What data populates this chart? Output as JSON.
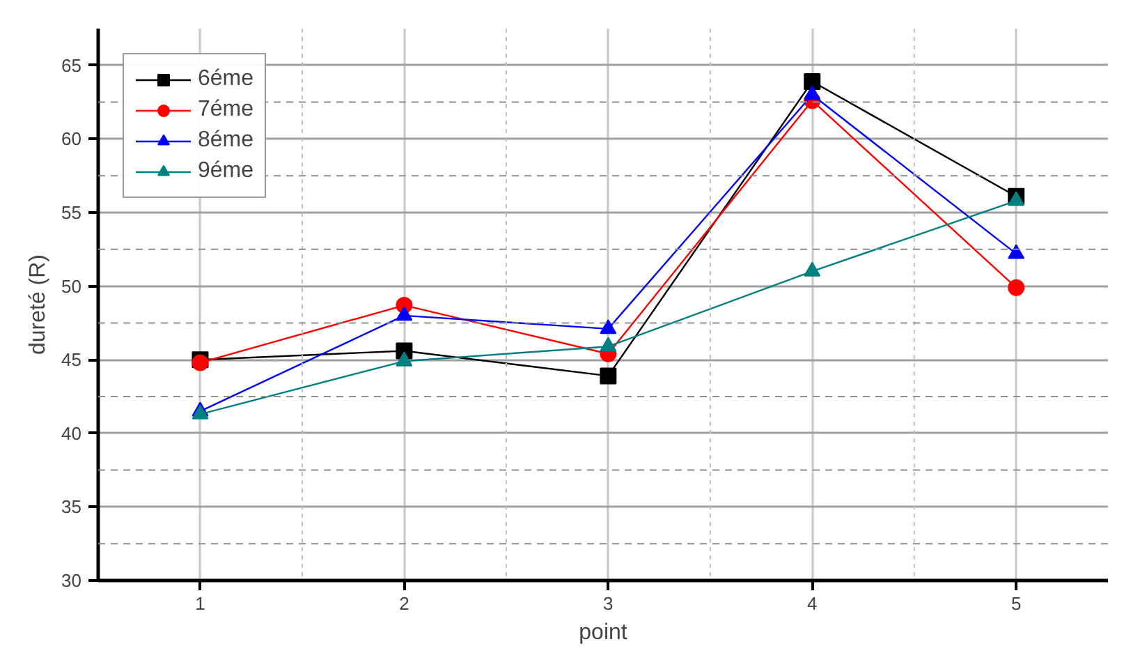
{
  "chart_data": {
    "type": "line",
    "xlabel": "point",
    "ylabel": "dureté (R)",
    "x": [
      1,
      2,
      3,
      4,
      5
    ],
    "xlim": [
      0.5,
      5.45
    ],
    "xticks": [
      1,
      2,
      3,
      4,
      5
    ],
    "ylim": [
      30,
      67.5
    ],
    "yticks": [
      30,
      35,
      40,
      45,
      50,
      55,
      60,
      65
    ],
    "grid": true,
    "legend": "top left",
    "line_style": "solid",
    "series": [
      {
        "name": "6éme",
        "color": "#000000",
        "marker": "square",
        "values": [
          45.0,
          45.6,
          43.9,
          63.9,
          56.1
        ]
      },
      {
        "name": "7éme",
        "color": "#ff0000",
        "marker": "circle",
        "values": [
          44.8,
          48.7,
          45.4,
          62.6,
          49.9
        ]
      },
      {
        "name": "8éme",
        "color": "#0000ff",
        "marker": "triangle",
        "values": [
          41.5,
          48.0,
          47.1,
          63.0,
          52.2
        ]
      },
      {
        "name": "9éme",
        "color": "#008080",
        "marker": "triangle",
        "values": [
          41.3,
          44.9,
          45.9,
          51.0,
          55.8
        ]
      }
    ]
  }
}
